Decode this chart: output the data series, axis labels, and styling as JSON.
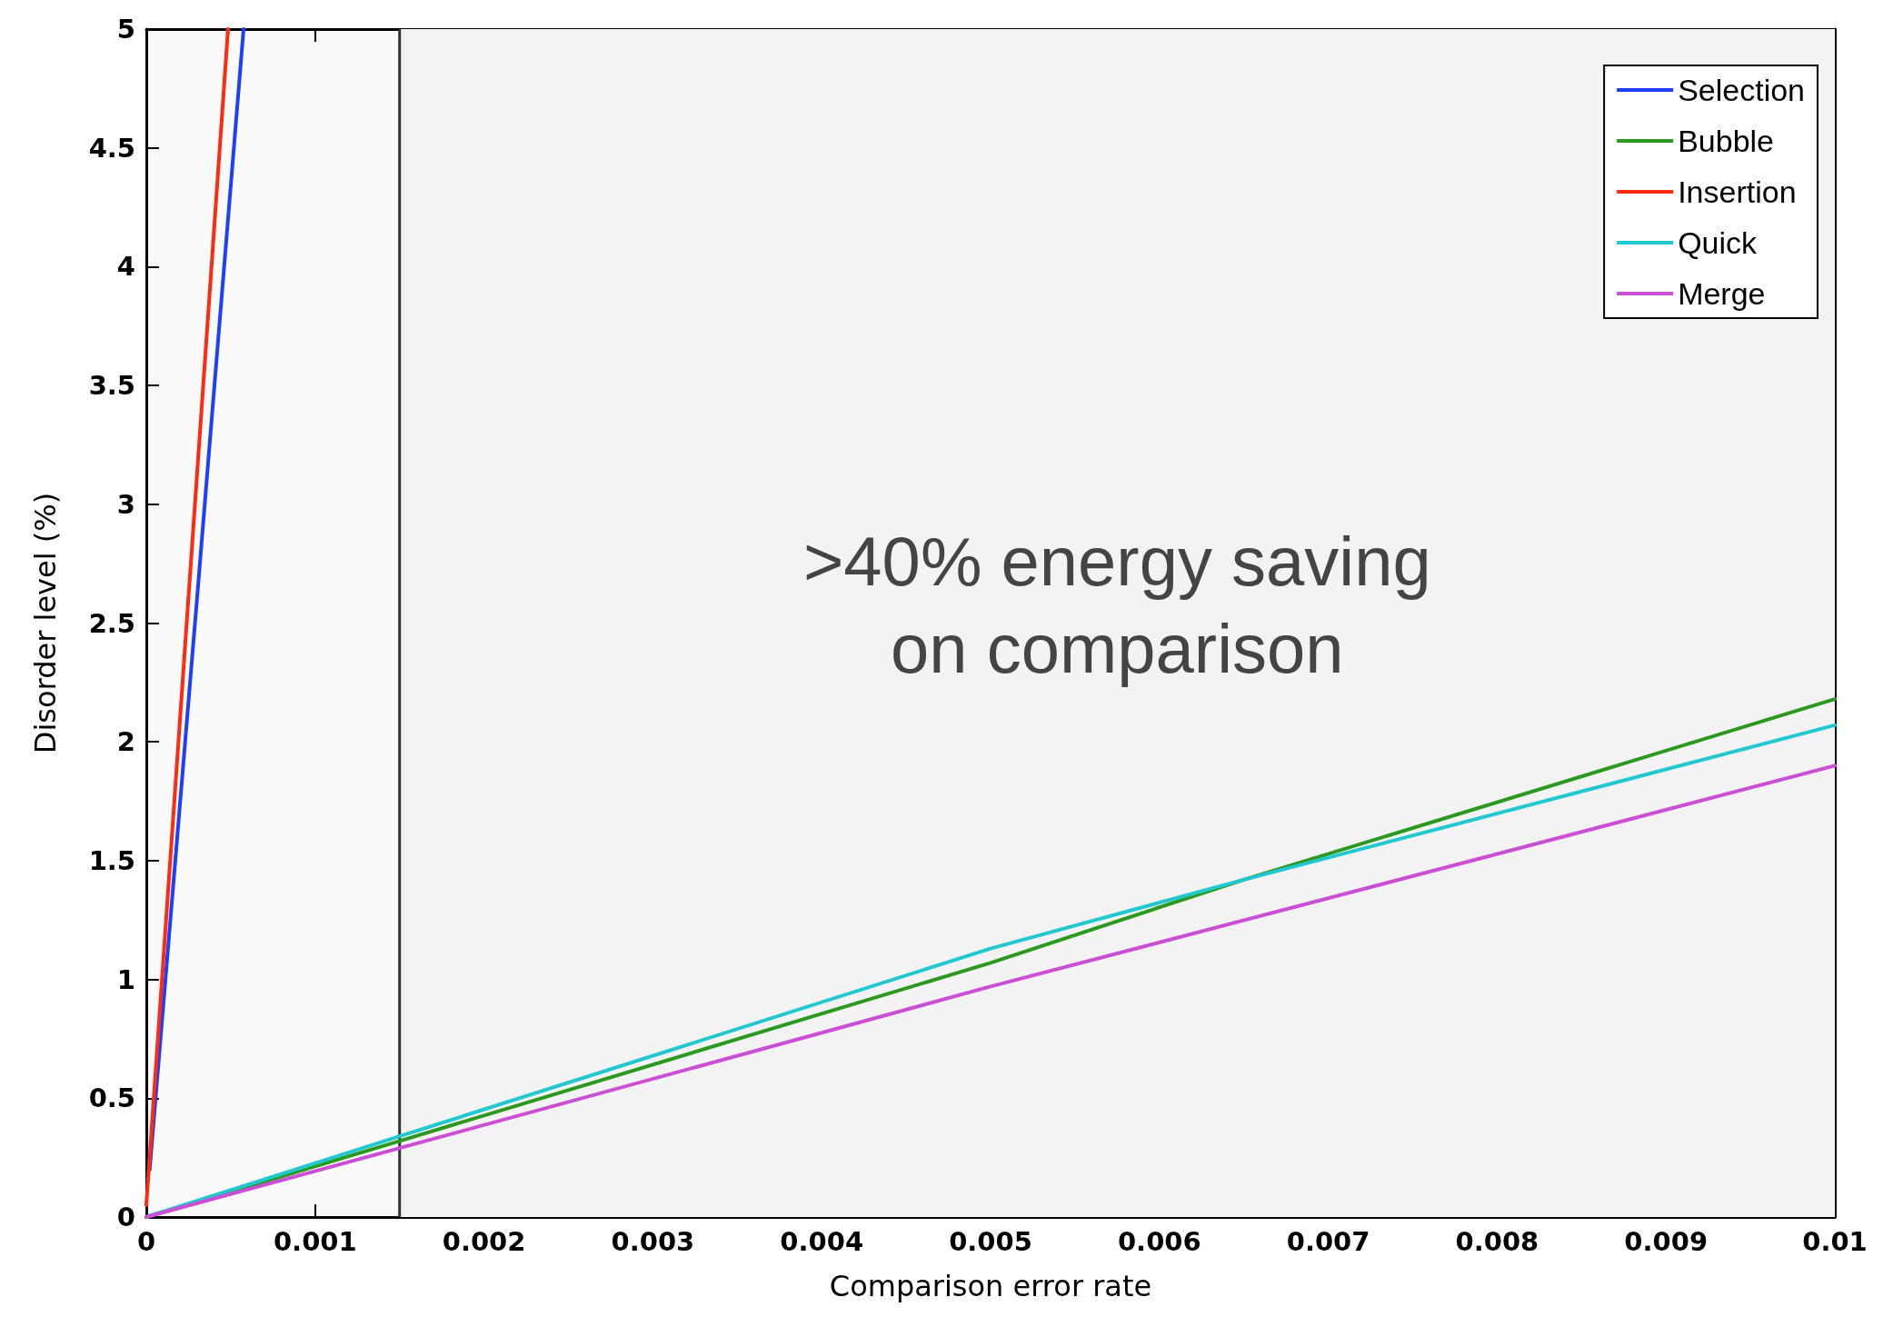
{
  "chart_data": {
    "type": "line",
    "xlabel": "Comparison error rate",
    "ylabel": "Disorder level (%)",
    "xlim": [
      0,
      0.01
    ],
    "xticks": [
      0,
      0.001,
      0.002,
      0.003,
      0.004,
      0.005,
      0.006,
      0.007,
      0.008,
      0.009,
      0.01
    ],
    "ylim": [
      0,
      5
    ],
    "yticks": [
      0,
      0.5,
      1,
      1.5,
      2,
      2.5,
      3,
      3.5,
      4,
      4.5,
      5
    ],
    "series": [
      {
        "name": "Selection",
        "color": "#1f3fff",
        "x": [
          2e-05,
          0.0003,
          0.000576
        ],
        "values": [
          0.2,
          2.6,
          5
        ]
      },
      {
        "name": "Bubble",
        "color": "#2a9a1e",
        "x": [
          0,
          0.0015,
          0.005,
          0.0065,
          0.01
        ],
        "values": [
          0,
          0.32,
          1.07,
          1.42,
          2.18
        ]
      },
      {
        "name": "Insertion",
        "color": "#ff2a10",
        "x": [
          0,
          0.0002,
          0.000484
        ],
        "values": [
          0.05,
          2.1,
          5
        ]
      },
      {
        "name": "Quick",
        "color": "#22c8d0",
        "x": [
          0,
          0.0015,
          0.005,
          0.0065,
          0.01
        ],
        "values": [
          0,
          0.34,
          1.13,
          1.42,
          2.07
        ]
      },
      {
        "name": "Merge",
        "color": "#cc4ed6",
        "x": [
          0,
          0.0015,
          0.005,
          0.01
        ],
        "values": [
          0,
          0.29,
          0.97,
          1.9
        ]
      }
    ],
    "bands": [
      {
        "axis": "x",
        "from": 0.0015,
        "to": 0.01,
        "label": ">40% energy saving\non comparison",
        "color": "#f3f3f3"
      }
    ],
    "ref_lines": [
      {
        "axis": "x",
        "value": 0.0015,
        "label": null,
        "color": "#333333"
      }
    ],
    "legend": "top right",
    "grid": false,
    "marker": "none",
    "line_style": "solid"
  }
}
